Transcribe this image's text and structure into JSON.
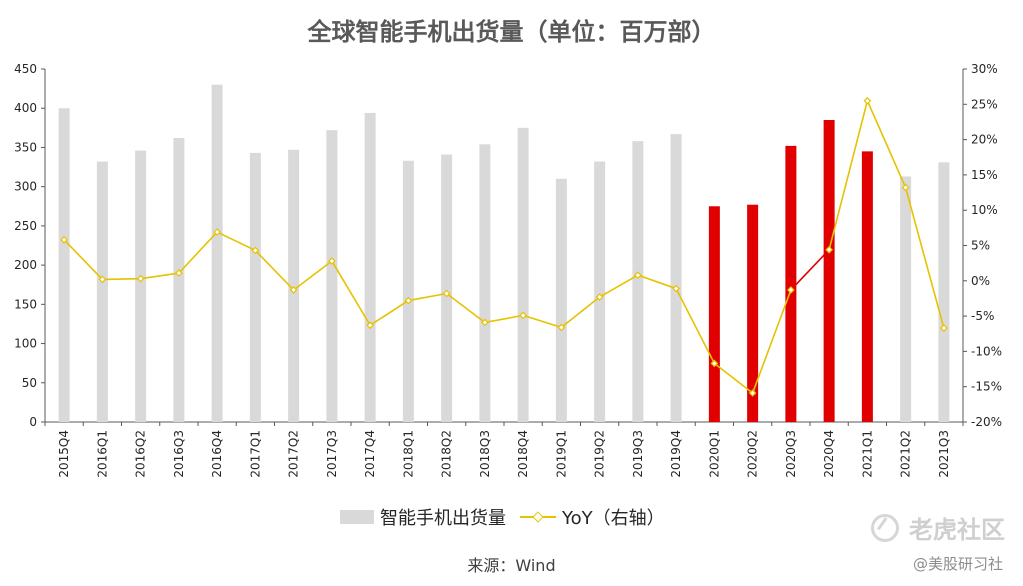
{
  "title": "全球智能手机出货量（单位：百万部）",
  "source": "来源：Wind",
  "watermark": {
    "logo": "老虎社区",
    "handle": "@美股研习社"
  },
  "legend": {
    "bar_label": "智能手机出货量",
    "line_label": "YoY（右轴）"
  },
  "colors": {
    "bar": "#d9d9d9",
    "bar_highlight": "#e00000",
    "line": "#e6c200",
    "line_highlight": "#e00000"
  },
  "chart_data": {
    "type": "bar",
    "categories": [
      "2015Q4",
      "2016Q1",
      "2016Q2",
      "2016Q3",
      "2016Q4",
      "2017Q1",
      "2017Q2",
      "2017Q3",
      "2017Q4",
      "2018Q1",
      "2018Q2",
      "2018Q3",
      "2018Q4",
      "2019Q1",
      "2019Q2",
      "2019Q3",
      "2019Q4",
      "2020Q1",
      "2020Q2",
      "2020Q3",
      "2020Q4",
      "2021Q1",
      "2021Q2",
      "2021Q3"
    ],
    "series": [
      {
        "name": "智能手机出货量",
        "type": "bar",
        "axis": "left",
        "values": [
          400,
          332,
          346,
          362,
          430,
          343,
          347,
          372,
          394,
          333,
          341,
          354,
          375,
          310,
          332,
          358,
          367,
          275,
          277,
          352,
          385,
          345,
          313,
          331
        ],
        "highlight_indices": [
          17,
          18,
          19,
          20,
          21
        ]
      },
      {
        "name": "YoY（右轴）",
        "type": "line",
        "axis": "right",
        "values": [
          5.8,
          0.2,
          0.3,
          1.1,
          6.9,
          4.3,
          -1.3,
          2.8,
          -6.3,
          -2.8,
          -1.8,
          -5.9,
          -4.9,
          -6.6,
          -2.3,
          0.8,
          -1.1,
          -11.7,
          -15.9,
          -1.3,
          4.4,
          25.5,
          13.2,
          -6.7
        ],
        "highlight_segments": [
          [
            19,
            20
          ]
        ]
      }
    ],
    "y_left": {
      "ylim": [
        0,
        450
      ],
      "ticks": [
        0,
        50,
        100,
        150,
        200,
        250,
        300,
        350,
        400,
        450
      ]
    },
    "y_right": {
      "ylim": [
        -20,
        30
      ],
      "ticks": [
        "30%",
        "25%",
        "20%",
        "15%",
        "10%",
        "5%",
        "0%",
        "-5%",
        "-10%",
        "-15%",
        "-20%"
      ]
    },
    "grid": false,
    "legend_position": "bottom"
  }
}
